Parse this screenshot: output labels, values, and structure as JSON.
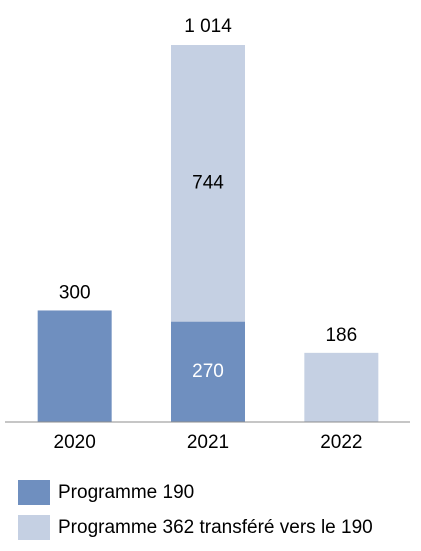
{
  "chart_data": {
    "type": "stacked_bar",
    "categories": [
      "2020",
      "2021",
      "2022"
    ],
    "series": [
      {
        "name": "Programme 190",
        "color": "#6f8fbf",
        "values": [
          300,
          270,
          null
        ]
      },
      {
        "name": "Programme 362 transféré vers le 190",
        "color": "#c5d0e3",
        "values": [
          null,
          744,
          186
        ]
      }
    ],
    "totals": [
      null,
      1014,
      null
    ],
    "total_labels": [
      null,
      "1 014",
      null
    ]
  }
}
